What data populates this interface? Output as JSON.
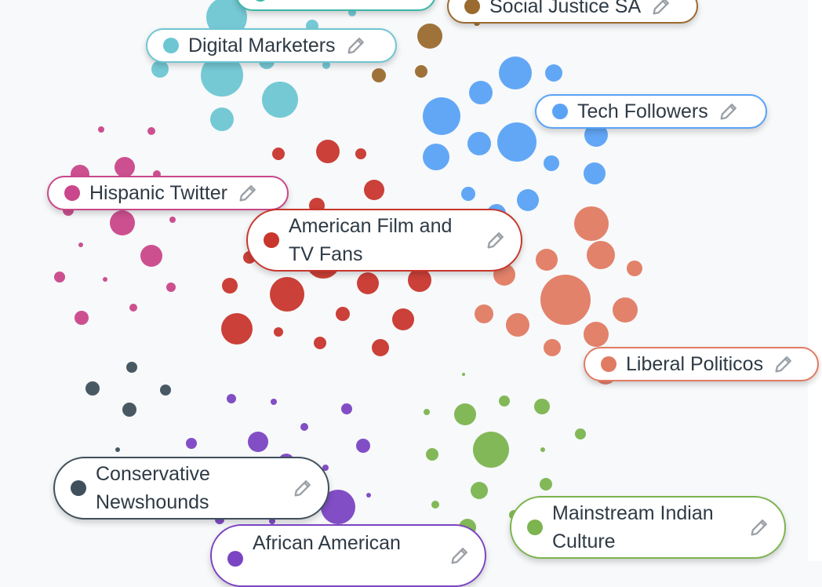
{
  "colors": {
    "background": "#f7f9fa",
    "teal": "#6ec6d3",
    "brown": "#9a6a2f",
    "blue": "#5aa2f6",
    "pink": "#c9478a",
    "red": "#c8362d",
    "orange": "#e07b63",
    "slate": "#3f505c",
    "purple": "#7b44c2",
    "green": "#7cb44f",
    "pencil": "#9aa0a6"
  },
  "clusters": [
    {
      "id": "partial-top",
      "label": "",
      "color": "#3bb7a8"
    },
    {
      "id": "social-justice-sa",
      "label": "Social Justice SA",
      "color": "#9a6a2f"
    },
    {
      "id": "digital-marketers",
      "label": "Digital Marketers",
      "color": "#6ec6d3"
    },
    {
      "id": "tech-followers",
      "label": "Tech Followers",
      "color": "#5aa2f6"
    },
    {
      "id": "hispanic-twitter",
      "label": "Hispanic Twitter",
      "color": "#c9478a"
    },
    {
      "id": "american-film-tv-fans",
      "label": "American Film and TV Fans",
      "color": "#c8362d"
    },
    {
      "id": "liberal-politicos",
      "label": "Liberal Politicos",
      "color": "#e07b63"
    },
    {
      "id": "conservative-newshounds",
      "label": "Conservative Newshounds",
      "color": "#3f505c"
    },
    {
      "id": "african-american",
      "label": "African American",
      "color": "#7b44c2"
    },
    {
      "id": "mainstream-indian-culture",
      "label": "Mainstream Indian Culture",
      "color": "#7cb44f"
    }
  ],
  "edit_icon": "pencil-icon"
}
